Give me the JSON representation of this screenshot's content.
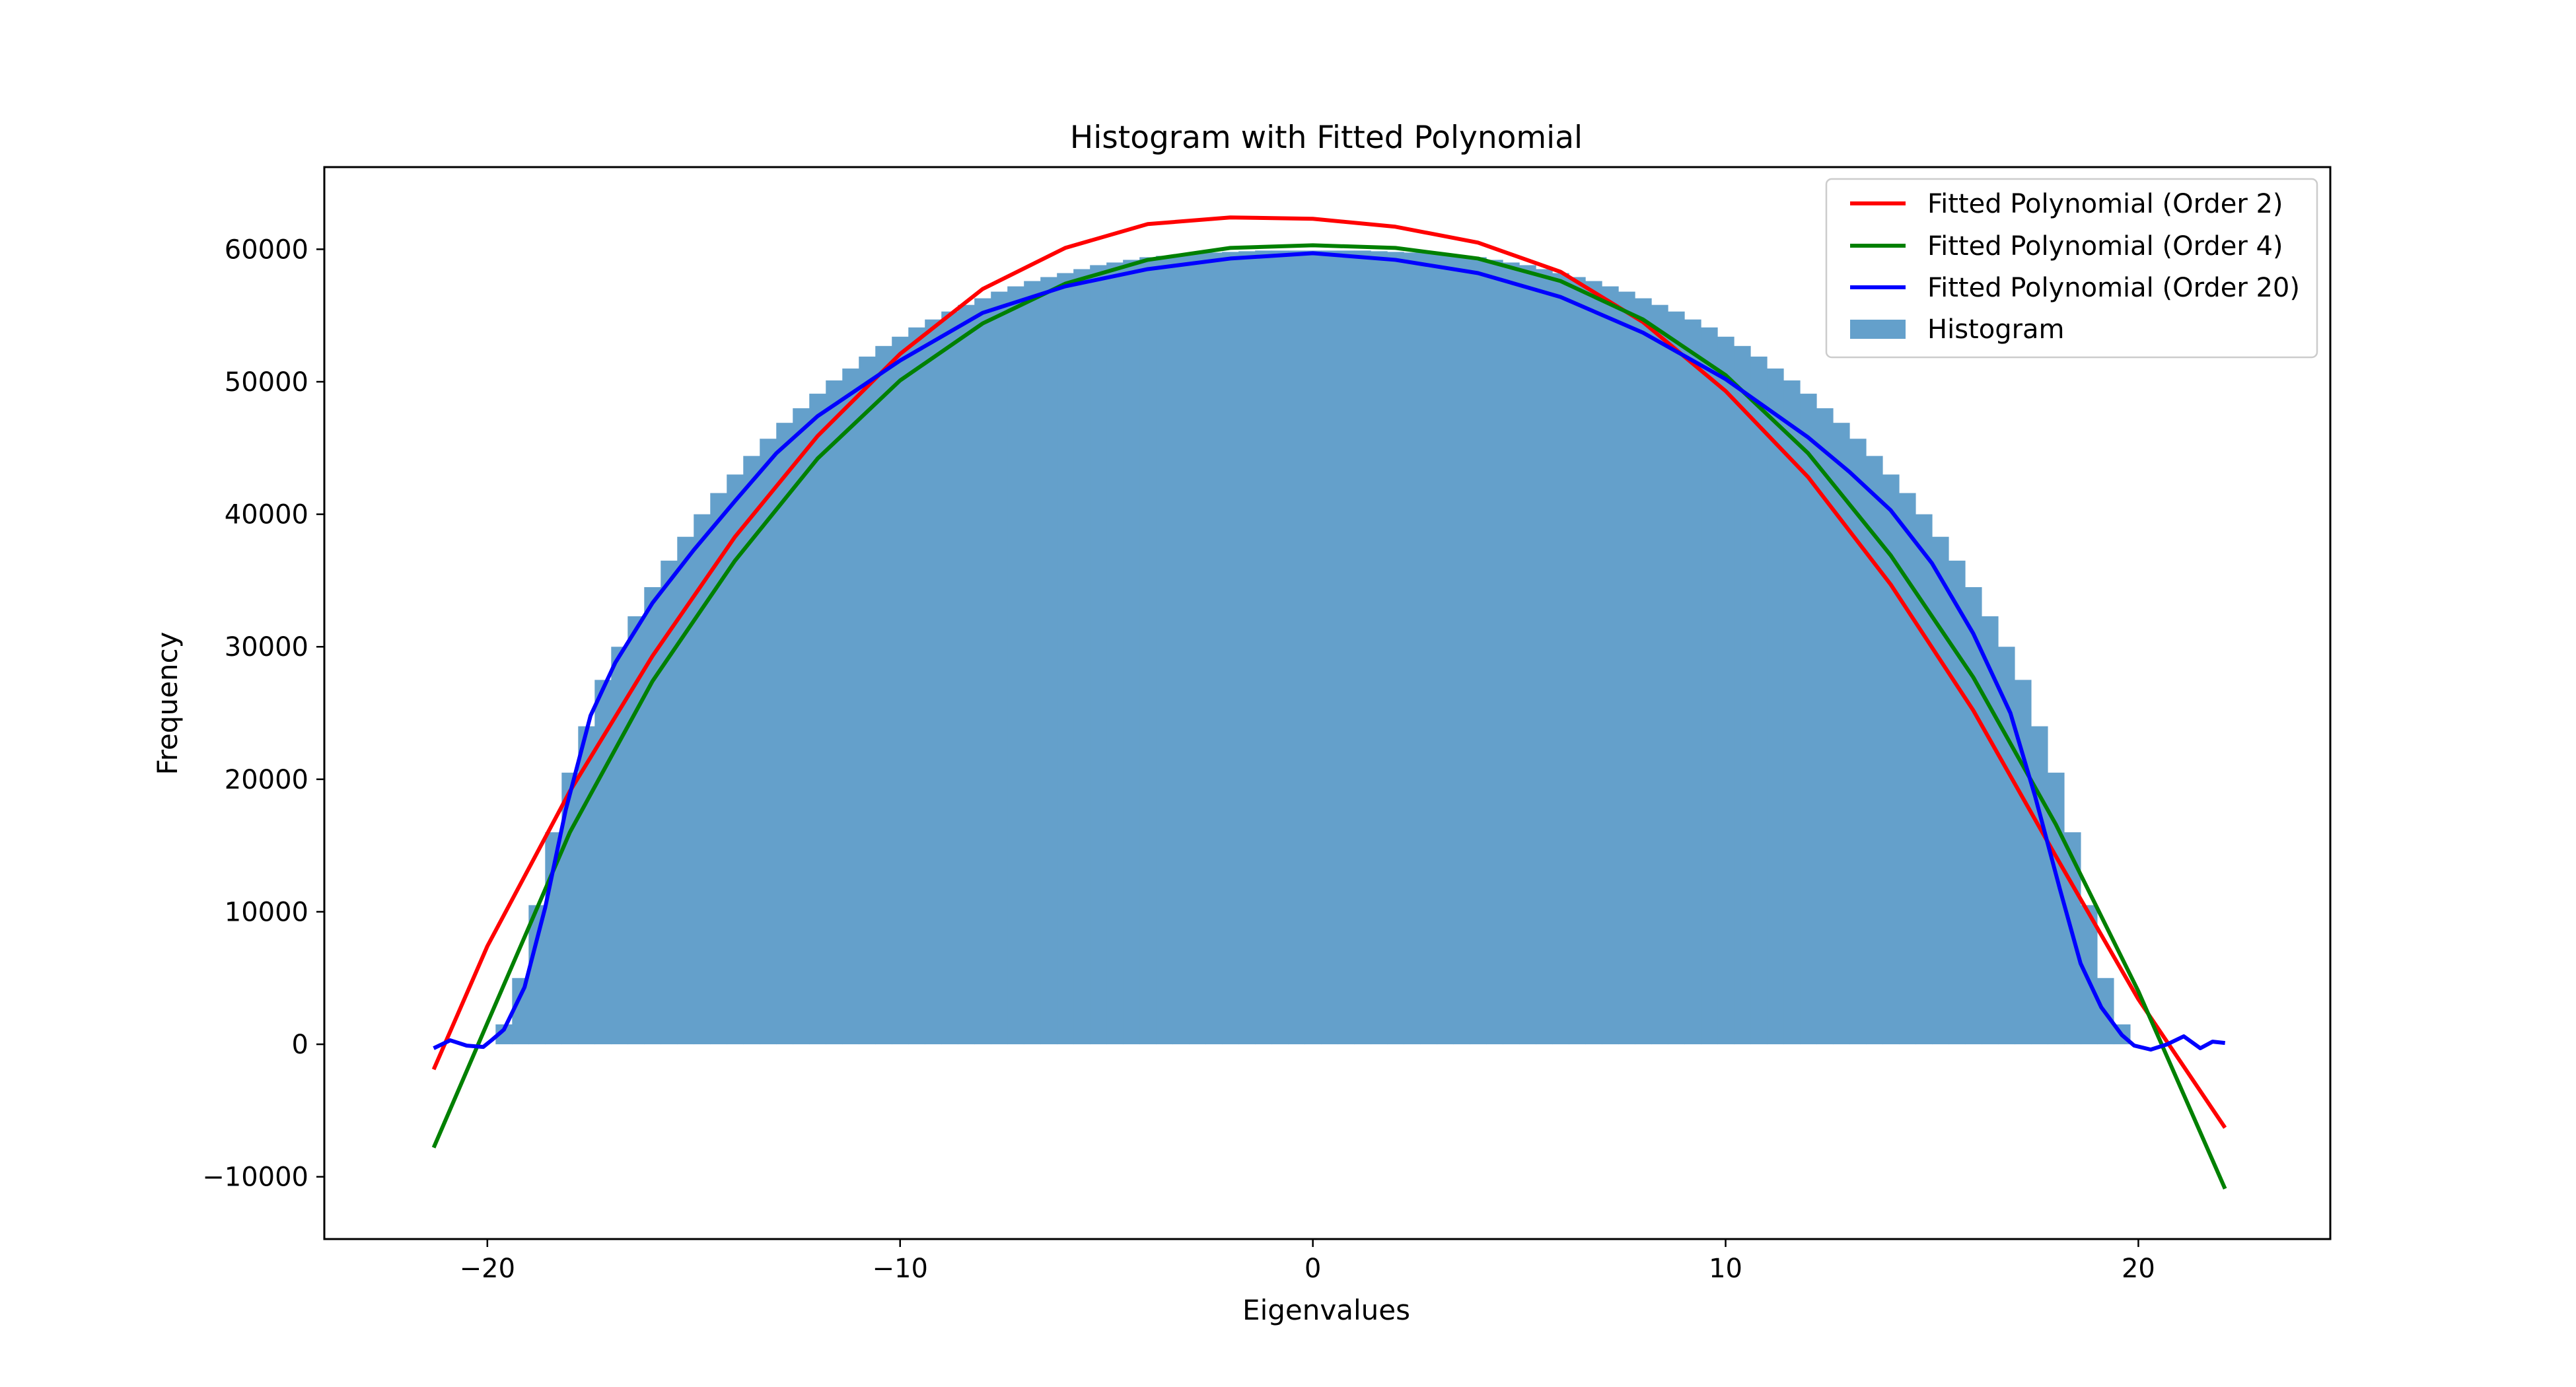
{
  "chart_data": {
    "type": "bar",
    "title": "Histogram with Fitted Polynomial",
    "xlabel": "Eigenvalues",
    "ylabel": "Frequency",
    "xlim": [
      -23.95,
      24.65
    ],
    "ylim": [
      -14700,
      66200
    ],
    "xticks": [
      -20,
      -10,
      0,
      10,
      20
    ],
    "xtick_labels": [
      "−20",
      "−10",
      "0",
      "10",
      "20"
    ],
    "yticks": [
      -10000,
      0,
      10000,
      20000,
      30000,
      40000,
      50000,
      60000
    ],
    "ytick_labels": [
      "−10000",
      "0",
      "10000",
      "20000",
      "30000",
      "40000",
      "50000",
      "60000"
    ],
    "grid": false,
    "legend_position": "top-right",
    "histogram": {
      "name": "Histogram",
      "color": "#64a0cb",
      "bin_edges": [
        -19.8,
        -19.4,
        -19.0,
        -18.6,
        -18.2,
        -17.8,
        -17.4,
        -17.0,
        -16.6,
        -16.2,
        -15.8,
        -15.4,
        -15.0,
        -14.6,
        -14.2,
        -13.8,
        -13.4,
        -13.0,
        -12.6,
        -12.2,
        -11.8,
        -11.4,
        -11.0,
        -10.6,
        -10.2,
        -9.8,
        -9.4,
        -9.0,
        -8.6,
        -8.2,
        -7.8,
        -7.4,
        -7.0,
        -6.6,
        -6.2,
        -5.8,
        -5.4,
        -5.0,
        -4.6,
        -4.2,
        -3.8,
        -3.4,
        -3.0,
        -2.6,
        -2.2,
        -1.8,
        -1.4,
        -1.0,
        -0.6,
        -0.2,
        0.2,
        0.6,
        1.0,
        1.4,
        1.8,
        2.2,
        2.6,
        3.0,
        3.4,
        3.8,
        4.2,
        4.6,
        5.0,
        5.4,
        5.8,
        6.2,
        6.6,
        7.0,
        7.4,
        7.8,
        8.2,
        8.6,
        9.0,
        9.4,
        9.8,
        10.2,
        10.6,
        11.0,
        11.4,
        11.8,
        12.2,
        12.6,
        13.0,
        13.4,
        13.8,
        14.2,
        14.6,
        15.0,
        15.4,
        15.8,
        16.2,
        16.6,
        17.0,
        17.4,
        17.8,
        18.2,
        18.6,
        19.0,
        19.4,
        19.8
      ],
      "values": [
        1500,
        5000,
        10500,
        16000,
        20500,
        24000,
        27500,
        30000,
        32300,
        34500,
        36500,
        38300,
        40000,
        41600,
        43000,
        44400,
        45700,
        46900,
        48000,
        49100,
        50100,
        51000,
        51900,
        52700,
        53400,
        54100,
        54700,
        55300,
        55800,
        56300,
        56800,
        57200,
        57600,
        57900,
        58200,
        58500,
        58800,
        59000,
        59200,
        59400,
        59500,
        59600,
        59700,
        59750,
        59800,
        59850,
        59900,
        59900,
        59900,
        59900,
        59900,
        59900,
        59900,
        59850,
        59800,
        59750,
        59700,
        59600,
        59500,
        59400,
        59200,
        59000,
        58800,
        58500,
        58200,
        57900,
        57600,
        57200,
        56800,
        56300,
        55800,
        55300,
        54700,
        54100,
        53400,
        52700,
        51900,
        51000,
        50100,
        49100,
        48000,
        46900,
        45700,
        44400,
        43000,
        41600,
        40000,
        38300,
        36500,
        34500,
        32300,
        30000,
        27500,
        24000,
        20500,
        16000,
        10500,
        5000,
        1500
      ]
    },
    "series": [
      {
        "name": "Fitted Polynomial (Order 2)",
        "color": "#ff0000",
        "x": [
          -21.3,
          -20.0,
          -18.0,
          -16.0,
          -14.0,
          -12.0,
          -10.0,
          -8.0,
          -6.0,
          -4.0,
          -2.0,
          0.0,
          2.0,
          4.0,
          6.0,
          8.0,
          10.0,
          12.0,
          14.0,
          16.0,
          18.0,
          20.0,
          22.1
        ],
        "y": [
          -1900,
          7400,
          19100,
          29300,
          38300,
          45900,
          52100,
          57000,
          60100,
          61900,
          62400,
          62300,
          61700,
          60500,
          58300,
          54500,
          49300,
          42800,
          34700,
          25200,
          14200,
          3400,
          -6300
        ]
      },
      {
        "name": "Fitted Polynomial (Order 4)",
        "color": "#008000",
        "x": [
          -21.3,
          -20.0,
          -18.0,
          -16.0,
          -14.0,
          -12.0,
          -10.0,
          -8.0,
          -6.0,
          -4.0,
          -2.0,
          0.0,
          2.0,
          4.0,
          6.0,
          8.0,
          10.0,
          12.0,
          14.0,
          16.0,
          18.0,
          20.0,
          22.1
        ],
        "y": [
          -7800,
          1600,
          16000,
          27400,
          36500,
          44200,
          50100,
          54400,
          57400,
          59200,
          60100,
          60300,
          60100,
          59300,
          57600,
          54700,
          50500,
          44600,
          36900,
          27700,
          16600,
          4000,
          -10900
        ]
      },
      {
        "name": "Fitted Polynomial (Order 20)",
        "color": "#0000ff",
        "x": [
          -21.3,
          -20.9,
          -20.5,
          -20.1,
          -19.9,
          -19.6,
          -19.1,
          -18.6,
          -18.1,
          -17.5,
          -16.9,
          -16.0,
          -15.0,
          -14.0,
          -13.0,
          -12.0,
          -10.0,
          -8.0,
          -6.0,
          -4.0,
          -2.0,
          0.0,
          2.0,
          4.0,
          6.0,
          8.0,
          10.0,
          12.0,
          13.0,
          14.0,
          15.0,
          16.0,
          16.9,
          17.5,
          18.1,
          18.6,
          19.1,
          19.6,
          19.9,
          20.3,
          20.7,
          21.1,
          21.5,
          21.8,
          22.1
        ],
        "y": [
          -300,
          300,
          -100,
          -200,
          300,
          1100,
          4300,
          10300,
          17700,
          24800,
          28800,
          33300,
          37300,
          41000,
          44600,
          47400,
          51600,
          55200,
          57200,
          58500,
          59300,
          59700,
          59200,
          58200,
          56400,
          53700,
          50200,
          45800,
          43200,
          40300,
          36300,
          31000,
          25000,
          18700,
          11700,
          6100,
          2800,
          700,
          -100,
          -400,
          0,
          600,
          -300,
          200,
          100
        ]
      }
    ]
  }
}
